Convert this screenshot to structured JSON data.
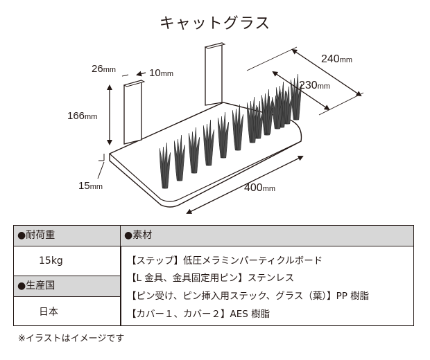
{
  "title": "キャットグラス",
  "dimensions": {
    "width_top": "26",
    "thickness_top": "10",
    "height": "166",
    "board_thickness": "15",
    "length": "400",
    "depth_outer": "240",
    "depth_inner": "230",
    "unit": "mm"
  },
  "spec": {
    "load_header": "●耐荷重",
    "load_value": "15kg",
    "origin_header": "●生産国",
    "origin_value": "日本",
    "material_header": "●素材",
    "materials": [
      "【ステップ】低圧メラミンパーティクルボード",
      "【L 金具、金具固定用ピン】ステンレス",
      "【ピン受け、ピン挿入用ステック、グラス（葉）】PP 樹脂",
      "【カバー１、カバー２】AES 樹脂"
    ]
  },
  "note": "※イラストはイメージです",
  "colors": {
    "header_bg": "#d7d7d7",
    "line": "#231815",
    "leaf": "#4d4d4d"
  }
}
